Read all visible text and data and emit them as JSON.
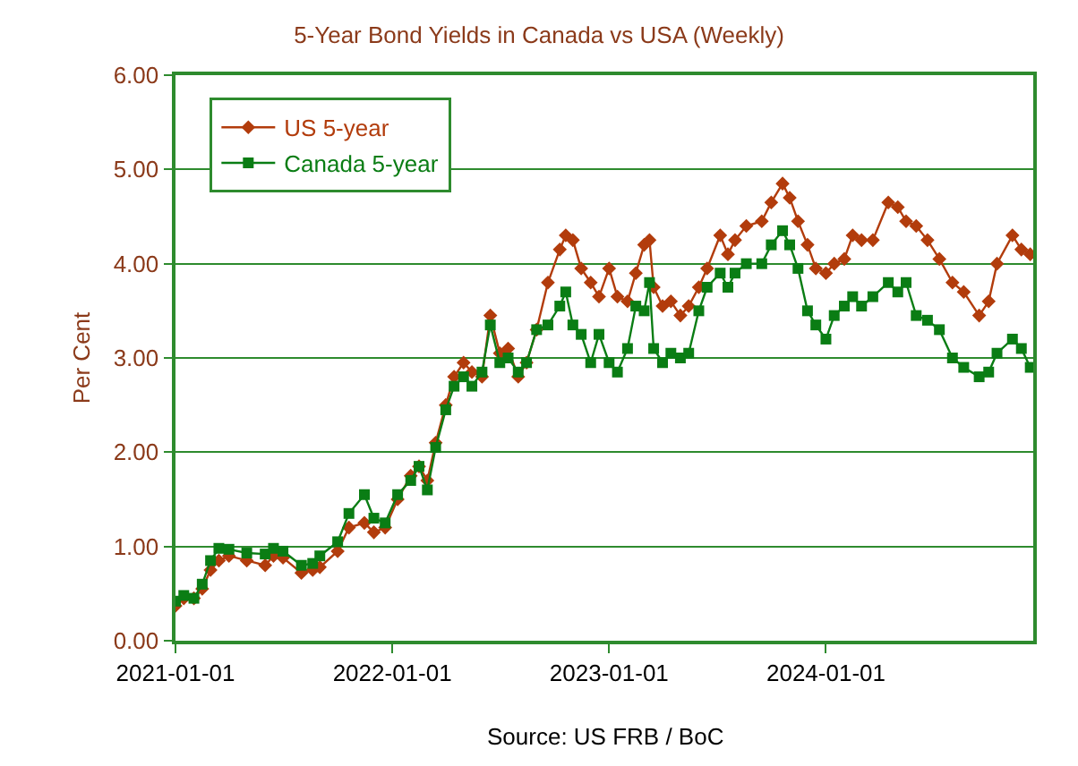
{
  "chart_data": {
    "type": "line",
    "title": "5-Year Bond Yields in Canada vs USA (Weekly)",
    "ylabel": "Per Cent",
    "annotations": [
      "Source: US FRB / BoC"
    ],
    "x": [
      "2021-01-01",
      "2021-01-15",
      "2021-02-01",
      "2021-02-15",
      "2021-03-01",
      "2021-03-15",
      "2021-04-01",
      "2021-05-01",
      "2021-06-01",
      "2021-06-15",
      "2021-07-01",
      "2021-08-01",
      "2021-08-20",
      "2021-09-01",
      "2021-10-01",
      "2021-10-20",
      "2021-11-15",
      "2021-12-01",
      "2021-12-20",
      "2022-01-10",
      "2022-02-01",
      "2022-02-15",
      "2022-03-01",
      "2022-03-15",
      "2022-04-01",
      "2022-04-15",
      "2022-05-01",
      "2022-05-15",
      "2022-06-01",
      "2022-06-15",
      "2022-07-01",
      "2022-07-15",
      "2022-08-01",
      "2022-08-15",
      "2022-09-01",
      "2022-09-20",
      "2022-10-10",
      "2022-10-20",
      "2022-11-01",
      "2022-11-15",
      "2022-12-01",
      "2022-12-15",
      "2023-01-01",
      "2023-01-15",
      "2023-02-01",
      "2023-02-15",
      "2023-03-01",
      "2023-03-10",
      "2023-03-17",
      "2023-04-01",
      "2023-04-15",
      "2023-05-01",
      "2023-05-15",
      "2023-06-01",
      "2023-06-15",
      "2023-07-07",
      "2023-07-20",
      "2023-08-01",
      "2023-08-20",
      "2023-09-15",
      "2023-10-01",
      "2023-10-20",
      "2023-11-01",
      "2023-11-15",
      "2023-12-01",
      "2023-12-15",
      "2024-01-01",
      "2024-01-15",
      "2024-02-01",
      "2024-02-15",
      "2024-03-01",
      "2024-03-20",
      "2024-04-15",
      "2024-05-01",
      "2024-05-15",
      "2024-06-01",
      "2024-06-20",
      "2024-07-10",
      "2024-08-01",
      "2024-08-20",
      "2024-09-15",
      "2024-10-01",
      "2024-10-15",
      "2024-11-10",
      "2024-11-25",
      "2024-12-10"
    ],
    "series": [
      {
        "name": "US 5-year",
        "color": "#b23c0c",
        "marker": "diamond",
        "values": [
          0.37,
          0.45,
          0.45,
          0.55,
          0.75,
          0.85,
          0.9,
          0.85,
          0.8,
          0.9,
          0.88,
          0.72,
          0.75,
          0.78,
          0.95,
          1.2,
          1.25,
          1.15,
          1.2,
          1.5,
          1.75,
          1.85,
          1.7,
          2.1,
          2.5,
          2.8,
          2.95,
          2.85,
          2.8,
          3.45,
          3.05,
          3.1,
          2.8,
          2.95,
          3.3,
          3.8,
          4.15,
          4.3,
          4.25,
          3.95,
          3.8,
          3.65,
          3.95,
          3.65,
          3.6,
          3.9,
          4.2,
          4.25,
          3.75,
          3.55,
          3.6,
          3.45,
          3.55,
          3.75,
          3.95,
          4.3,
          4.1,
          4.25,
          4.4,
          4.45,
          4.65,
          4.85,
          4.7,
          4.45,
          4.2,
          3.95,
          3.9,
          4.0,
          4.05,
          4.3,
          4.25,
          4.25,
          4.65,
          4.6,
          4.45,
          4.4,
          4.25,
          4.05,
          3.8,
          3.7,
          3.45,
          3.6,
          4.0,
          4.3,
          4.15,
          4.1
        ]
      },
      {
        "name": "Canada 5-year",
        "color": "#0a7d14",
        "marker": "square",
        "values": [
          0.42,
          0.48,
          0.45,
          0.6,
          0.85,
          0.98,
          0.97,
          0.93,
          0.92,
          0.98,
          0.95,
          0.8,
          0.82,
          0.9,
          1.05,
          1.35,
          1.55,
          1.3,
          1.25,
          1.55,
          1.7,
          1.85,
          1.6,
          2.05,
          2.45,
          2.7,
          2.8,
          2.7,
          2.85,
          3.35,
          2.95,
          3.0,
          2.85,
          2.95,
          3.3,
          3.35,
          3.55,
          3.7,
          3.35,
          3.25,
          2.95,
          3.25,
          2.95,
          2.85,
          3.1,
          3.55,
          3.5,
          3.8,
          3.1,
          2.95,
          3.05,
          3.0,
          3.05,
          3.5,
          3.75,
          3.9,
          3.75,
          3.9,
          4.0,
          4.0,
          4.2,
          4.35,
          4.2,
          3.95,
          3.5,
          3.35,
          3.2,
          3.45,
          3.55,
          3.65,
          3.55,
          3.65,
          3.8,
          3.7,
          3.8,
          3.45,
          3.4,
          3.3,
          3.0,
          2.9,
          2.8,
          2.85,
          3.05,
          3.2,
          3.1,
          2.9
        ]
      }
    ],
    "xlim": [
      "2021-01-01",
      "2024-12-15"
    ],
    "xticks": [
      "2021-01-01",
      "2022-01-01",
      "2023-01-01",
      "2024-01-01"
    ],
    "ylim": [
      0,
      6
    ],
    "yticks": [
      {
        "value": 0,
        "label": "0.00"
      },
      {
        "value": 1,
        "label": "1.00"
      },
      {
        "value": 2,
        "label": "2.00"
      },
      {
        "value": 3,
        "label": "3.00"
      },
      {
        "value": 4,
        "label": "4.00"
      },
      {
        "value": 5,
        "label": "5.00"
      },
      {
        "value": 6,
        "label": "6.00"
      }
    ],
    "grid": "y",
    "legend": "top left",
    "line_style": "solid"
  }
}
